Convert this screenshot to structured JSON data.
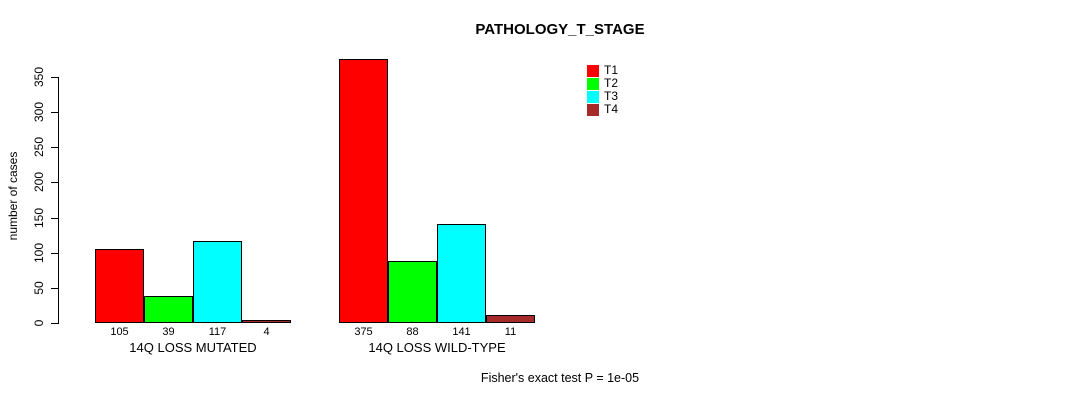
{
  "title": "PATHOLOGY_T_STAGE",
  "footnote": "Fisher's exact test P = 1e-05",
  "colors": {
    "t1": "#FF0000",
    "t2": "#00FF00",
    "t3": "#00FFFF",
    "t4": "#A52A2A",
    "axis": "#000000",
    "background": "#FFFFFF"
  },
  "chart_data": {
    "type": "bar",
    "title": "PATHOLOGY_T_STAGE",
    "xlabel": "",
    "ylabel": "number of cases",
    "ylim": [
      0,
      375
    ],
    "yticks": [
      0,
      50,
      100,
      150,
      200,
      250,
      300,
      350
    ],
    "grid": false,
    "legend_position": "top-right",
    "categories": [
      "14Q LOSS MUTATED",
      "14Q LOSS WILD-TYPE"
    ],
    "series": [
      {
        "name": "T1",
        "color": "#FF0000",
        "values": [
          105,
          375
        ]
      },
      {
        "name": "T2",
        "color": "#00FF00",
        "values": [
          39,
          88
        ]
      },
      {
        "name": "T3",
        "color": "#00FFFF",
        "values": [
          117,
          141
        ]
      },
      {
        "name": "T4",
        "color": "#A52A2A",
        "values": [
          4,
          11
        ]
      }
    ],
    "bar_value_labels": [
      [
        "105",
        "39",
        "117",
        "4"
      ],
      [
        "375",
        "88",
        "141",
        "11"
      ]
    ],
    "annotation": "Fisher's exact test P = 1e-05"
  }
}
